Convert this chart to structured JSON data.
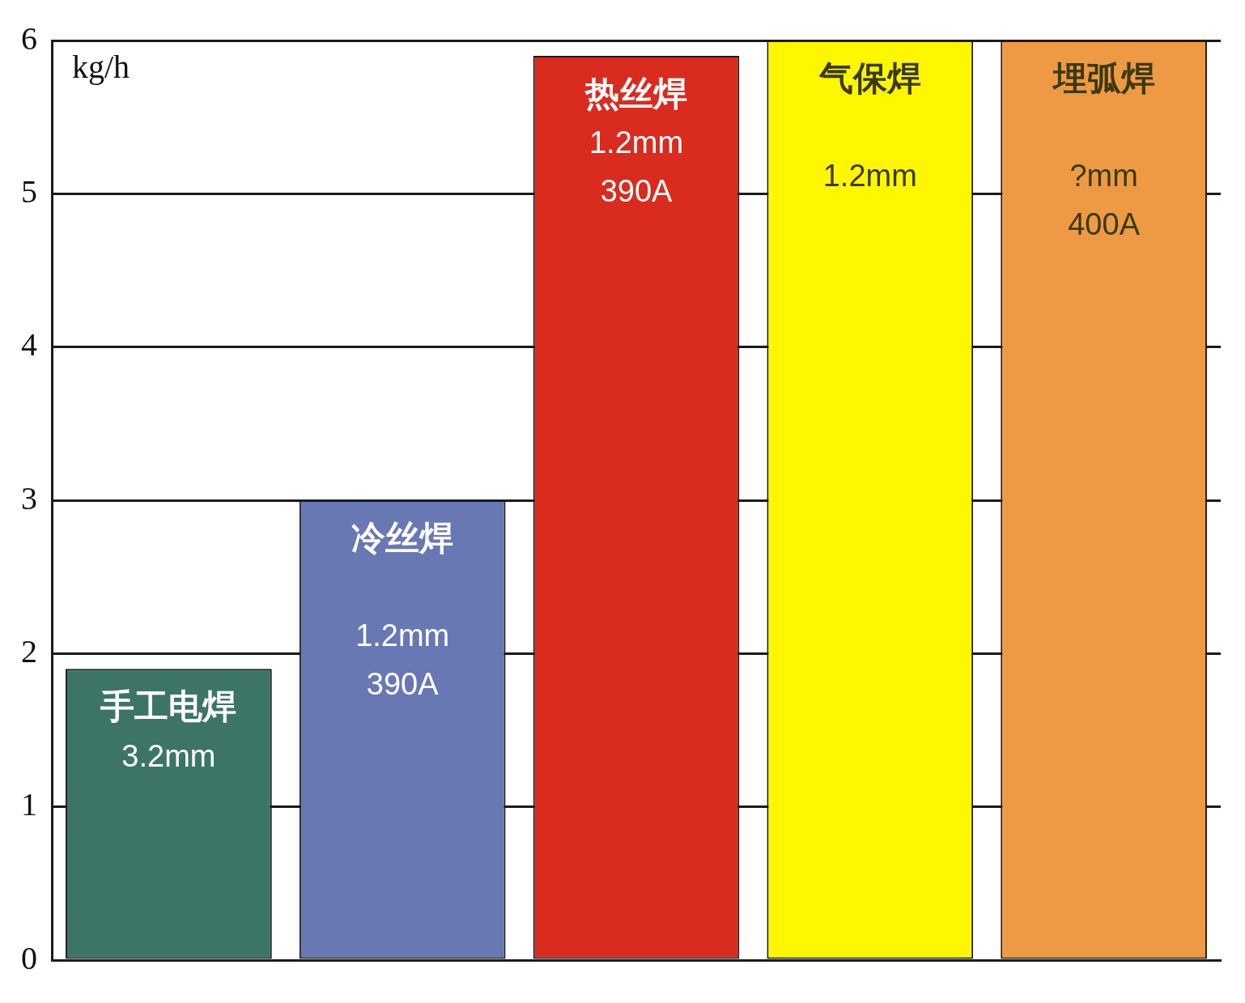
{
  "chart_data": {
    "type": "bar",
    "ylabel": "kg/h",
    "categories": [
      "手工电焊\n3.2mm",
      "冷丝焊\n\n1.2mm\n390A",
      "热丝焊\n1.2mm\n390A",
      "气保焊\n\n1.2mm",
      "埋弧焊\n\n?mm\n400A"
    ],
    "values": [
      1.9,
      3.0,
      5.9,
      6,
      6
    ],
    "colors": [
      "#3d7468",
      "#6878b2",
      "#d92b1e",
      "#fff700",
      "#ee9a45"
    ],
    "ylim": [
      0,
      6
    ],
    "yticks": [
      0,
      1,
      2,
      3,
      4,
      5,
      6
    ],
    "grid": "y",
    "tick_labels": "y",
    "legend": false
  }
}
